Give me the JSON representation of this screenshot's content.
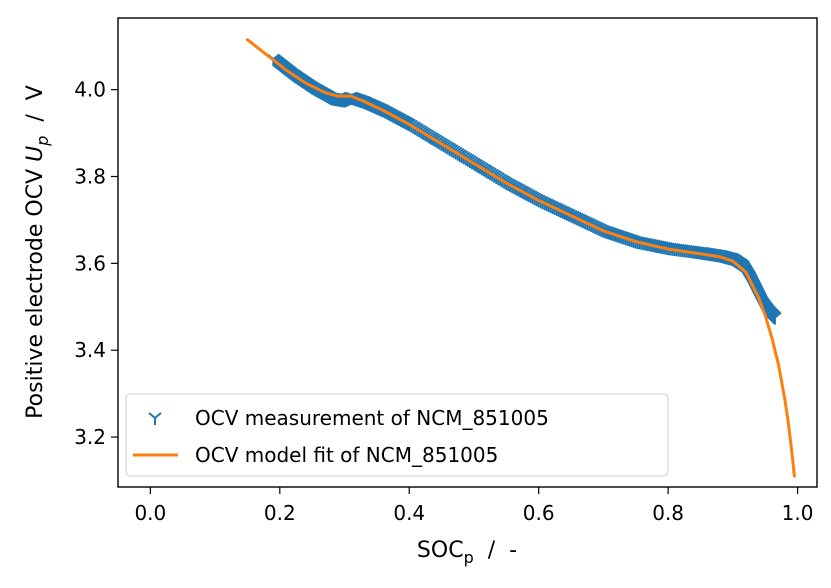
{
  "chart_data": {
    "type": "line",
    "xlabel_main": "SOC",
    "xlabel_sub": "p",
    "xlabel_rest": "  /  -",
    "ylabel_main": "Positive electrode OCV ",
    "ylabel_sym": "U",
    "ylabel_sub": "p",
    "ylabel_rest": "  /  V",
    "xlim": [
      -0.05,
      1.03
    ],
    "ylim": [
      3.085,
      4.165
    ],
    "xticks": [
      0.0,
      0.2,
      0.4,
      0.6,
      0.8,
      1.0
    ],
    "xtick_labels": [
      "0.0",
      "0.2",
      "0.4",
      "0.6",
      "0.8",
      "1.0"
    ],
    "yticks": [
      3.2,
      3.4,
      3.6,
      3.8,
      4.0
    ],
    "ytick_labels": [
      "3.2",
      "3.4",
      "3.6",
      "3.8",
      "4.0"
    ],
    "legend_position": "lower-left",
    "series": [
      {
        "name": "OCV measurement of NCM_851005",
        "style": "marker",
        "marker": "tri_down",
        "color": "#1f77b4",
        "x": [
          0.19,
          0.22,
          0.25,
          0.28,
          0.3,
          0.31,
          0.33,
          0.36,
          0.4,
          0.45,
          0.5,
          0.55,
          0.6,
          0.65,
          0.7,
          0.75,
          0.8,
          0.85,
          0.88,
          0.9,
          0.915,
          0.925,
          0.935,
          0.945,
          0.955,
          0.965
        ],
        "y": [
          4.07,
          4.035,
          4.005,
          3.98,
          3.975,
          3.982,
          3.972,
          3.952,
          3.92,
          3.875,
          3.83,
          3.785,
          3.745,
          3.71,
          3.675,
          3.65,
          3.635,
          3.625,
          3.618,
          3.61,
          3.595,
          3.57,
          3.54,
          3.51,
          3.49,
          3.475
        ]
      },
      {
        "name": "OCV model fit of NCM_851005",
        "style": "line",
        "color": "#ff7f0e",
        "x": [
          0.15,
          0.18,
          0.21,
          0.24,
          0.27,
          0.29,
          0.31,
          0.33,
          0.36,
          0.4,
          0.45,
          0.5,
          0.55,
          0.6,
          0.65,
          0.7,
          0.75,
          0.8,
          0.85,
          0.88,
          0.9,
          0.92,
          0.94,
          0.95,
          0.96,
          0.97,
          0.98,
          0.985,
          0.99,
          0.993,
          0.995
        ],
        "y": [
          4.115,
          4.08,
          4.045,
          4.015,
          3.993,
          3.985,
          3.985,
          3.973,
          3.952,
          3.92,
          3.875,
          3.83,
          3.785,
          3.745,
          3.71,
          3.675,
          3.65,
          3.633,
          3.622,
          3.615,
          3.605,
          3.58,
          3.52,
          3.48,
          3.43,
          3.37,
          3.29,
          3.24,
          3.18,
          3.14,
          3.11
        ]
      }
    ]
  }
}
